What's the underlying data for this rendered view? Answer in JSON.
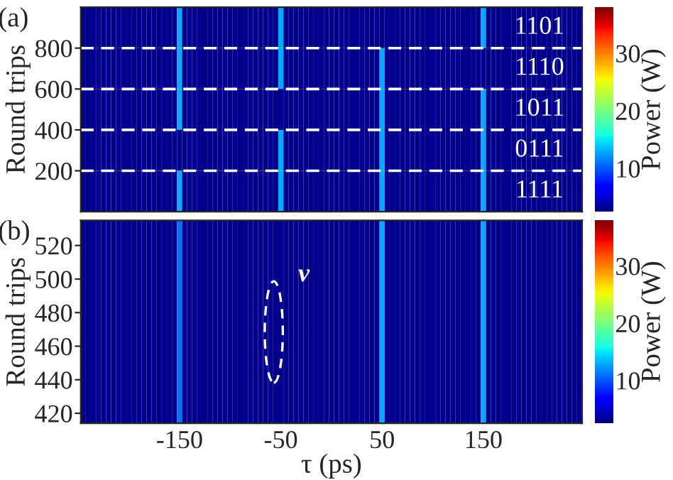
{
  "chart_data": [
    {
      "type": "heatmap",
      "ylabel": "Round trips",
      "clabel": "Power (W)",
      "annotations": [
        "(a)",
        "1101",
        "1110",
        "1011",
        "0111",
        "1111"
      ],
      "x": [
        -245,
        -240,
        -235,
        -230,
        -225,
        -220,
        -215,
        -210,
        -205,
        -200,
        -195,
        -190,
        -185,
        -180,
        -175,
        -170,
        -165,
        -160,
        -155,
        -150,
        -145,
        -140,
        -135,
        -130,
        -125,
        -120,
        -115,
        -110,
        -105,
        -100,
        -95,
        -90,
        -85,
        -80,
        -75,
        -70,
        -65,
        -60,
        -55,
        -50,
        -45,
        -40,
        -35,
        -30,
        -25,
        -20,
        -15,
        -10,
        -5,
        0,
        5,
        10,
        15,
        20,
        25,
        30,
        35,
        40,
        45,
        50,
        55,
        60,
        65,
        70,
        75,
        80,
        85,
        90,
        95,
        100,
        105,
        110,
        115,
        120,
        125,
        130,
        135,
        140,
        145,
        150,
        155,
        160,
        165,
        170,
        175,
        180,
        185,
        190,
        195,
        200,
        205,
        210,
        215,
        220,
        225,
        230,
        235,
        240,
        245
      ],
      "y": [
        900,
        700,
        500,
        300,
        100
      ],
      "cells": [
        [
          3,
          3,
          3,
          3,
          3,
          3,
          3,
          3,
          3,
          3,
          3,
          3,
          3,
          3,
          3,
          3,
          3,
          3,
          3,
          13,
          3,
          3,
          3,
          3,
          3,
          3,
          3,
          3,
          3,
          3,
          3,
          3,
          3,
          3,
          3,
          3,
          3,
          3,
          3,
          13,
          3,
          3,
          3,
          3,
          3,
          3,
          3,
          3,
          3,
          3,
          3,
          3,
          3,
          3,
          3,
          3,
          3,
          3,
          3,
          3,
          3,
          3,
          3,
          3,
          3,
          3,
          3,
          3,
          3,
          3,
          3,
          3,
          3,
          3,
          3,
          3,
          3,
          3,
          3,
          13,
          3,
          3,
          3,
          3,
          3,
          3,
          3,
          3,
          3,
          3,
          3,
          3,
          3,
          3,
          3,
          3,
          3,
          3,
          3
        ],
        [
          3,
          3,
          3,
          3,
          3,
          3,
          3,
          3,
          3,
          3,
          3,
          3,
          3,
          3,
          3,
          3,
          3,
          3,
          3,
          13,
          3,
          3,
          3,
          3,
          3,
          3,
          3,
          3,
          3,
          3,
          3,
          3,
          3,
          3,
          3,
          3,
          3,
          3,
          3,
          13,
          3,
          3,
          3,
          3,
          3,
          3,
          3,
          3,
          3,
          3,
          3,
          3,
          3,
          3,
          3,
          3,
          3,
          3,
          3,
          13,
          3,
          3,
          3,
          3,
          3,
          3,
          3,
          3,
          3,
          3,
          3,
          3,
          3,
          3,
          3,
          3,
          3,
          3,
          3,
          3,
          3,
          3,
          3,
          3,
          3,
          3,
          3,
          3,
          3,
          3,
          3,
          3,
          3,
          3,
          3,
          3,
          3,
          3,
          3
        ],
        [
          3,
          3,
          3,
          3,
          3,
          3,
          3,
          3,
          3,
          3,
          3,
          3,
          3,
          3,
          3,
          3,
          3,
          3,
          3,
          13,
          3,
          3,
          3,
          3,
          3,
          3,
          3,
          3,
          3,
          3,
          3,
          3,
          3,
          3,
          3,
          3,
          3,
          3,
          3,
          3,
          3,
          3,
          3,
          3,
          3,
          3,
          3,
          3,
          3,
          3,
          3,
          3,
          3,
          3,
          3,
          3,
          3,
          3,
          3,
          13,
          3,
          3,
          3,
          3,
          3,
          3,
          3,
          3,
          3,
          3,
          3,
          3,
          3,
          3,
          3,
          3,
          3,
          3,
          3,
          13,
          3,
          3,
          3,
          3,
          3,
          3,
          3,
          3,
          3,
          3,
          3,
          3,
          3,
          3,
          3,
          3,
          3,
          3,
          3
        ],
        [
          3,
          3,
          3,
          3,
          3,
          3,
          3,
          3,
          3,
          3,
          3,
          3,
          3,
          3,
          3,
          3,
          3,
          3,
          3,
          3,
          3,
          3,
          3,
          3,
          3,
          3,
          3,
          3,
          3,
          3,
          3,
          3,
          3,
          3,
          3,
          3,
          3,
          3,
          3,
          13,
          3,
          3,
          3,
          3,
          3,
          3,
          3,
          3,
          3,
          3,
          3,
          3,
          3,
          3,
          3,
          3,
          3,
          3,
          3,
          13,
          3,
          3,
          3,
          3,
          3,
          3,
          3,
          3,
          3,
          3,
          3,
          3,
          3,
          3,
          3,
          3,
          3,
          3,
          3,
          13,
          3,
          3,
          3,
          3,
          3,
          3,
          3,
          3,
          3,
          3,
          3,
          3,
          3,
          3,
          3,
          3,
          3,
          3,
          3
        ],
        [
          3,
          3,
          3,
          3,
          3,
          3,
          3,
          3,
          3,
          3,
          3,
          3,
          3,
          3,
          3,
          3,
          3,
          3,
          3,
          13,
          3,
          3,
          3,
          3,
          3,
          3,
          3,
          3,
          3,
          3,
          3,
          3,
          3,
          3,
          3,
          3,
          3,
          3,
          3,
          13,
          3,
          3,
          3,
          3,
          3,
          3,
          3,
          3,
          3,
          3,
          3,
          3,
          3,
          3,
          3,
          3,
          3,
          3,
          3,
          13,
          3,
          3,
          3,
          3,
          3,
          3,
          3,
          3,
          3,
          3,
          3,
          3,
          3,
          3,
          3,
          3,
          3,
          3,
          3,
          13,
          3,
          3,
          3,
          3,
          3,
          3,
          3,
          3,
          3,
          3,
          3,
          3,
          3,
          3,
          3,
          3,
          3,
          3,
          3
        ]
      ],
      "clim": [
        2.5,
        38
      ],
      "cticks": [
        10,
        20,
        30
      ],
      "xlim": [
        -247.5,
        247.5
      ],
      "ylim": [
        0,
        1000
      ],
      "yticks": [
        200,
        400,
        600,
        800
      ],
      "tick_labels": "y",
      "ref_lines": [
        {
          "axis": "y",
          "value": 200,
          "color": "#ffffff",
          "line_style": "dashed"
        },
        {
          "axis": "y",
          "value": 400,
          "color": "#ffffff",
          "line_style": "dashed"
        },
        {
          "axis": "y",
          "value": 600,
          "color": "#ffffff",
          "line_style": "dashed"
        },
        {
          "axis": "y",
          "value": 800,
          "color": "#ffffff",
          "line_style": "dashed"
        }
      ]
    },
    {
      "type": "heatmap",
      "xlabel": "τ (ps)",
      "ylabel": "Round trips",
      "clabel": "Power (W)",
      "annotations": [
        "(b)",
        "ν"
      ],
      "x": [
        -245,
        -240,
        -235,
        -230,
        -225,
        -220,
        -215,
        -210,
        -205,
        -200,
        -195,
        -190,
        -185,
        -180,
        -175,
        -170,
        -165,
        -160,
        -155,
        -150,
        -145,
        -140,
        -135,
        -130,
        -125,
        -120,
        -115,
        -110,
        -105,
        -100,
        -95,
        -90,
        -85,
        -80,
        -75,
        -70,
        -65,
        -60,
        -55,
        -50,
        -45,
        -40,
        -35,
        -30,
        -25,
        -20,
        -15,
        -10,
        -5,
        0,
        5,
        10,
        15,
        20,
        25,
        30,
        35,
        40,
        45,
        50,
        55,
        60,
        65,
        70,
        75,
        80,
        85,
        90,
        95,
        100,
        105,
        110,
        115,
        120,
        125,
        130,
        135,
        140,
        145,
        150,
        155,
        160,
        165,
        170,
        175,
        180,
        185,
        190,
        195,
        200,
        205,
        210,
        215,
        220,
        225,
        230,
        235,
        240,
        245
      ],
      "cells": [
        [
          3,
          3,
          3,
          3,
          3,
          3,
          3,
          3,
          3,
          3,
          3,
          3,
          3,
          3,
          3,
          3,
          3,
          3,
          3,
          11,
          3,
          3,
          3,
          3,
          3,
          3,
          3,
          3,
          3,
          3,
          3,
          3,
          3,
          3,
          3,
          3,
          3,
          3,
          3,
          3,
          3,
          3,
          3,
          3,
          3,
          3,
          3,
          3,
          3,
          3,
          3,
          3,
          3,
          3,
          3,
          3,
          3,
          3,
          3,
          13,
          3,
          3,
          3,
          3,
          3,
          3,
          3,
          3,
          3,
          3,
          3,
          3,
          3,
          3,
          3,
          3,
          3,
          3,
          3,
          13,
          3,
          3,
          3,
          3,
          3,
          3,
          3,
          3,
          3,
          3,
          3,
          3,
          3,
          3,
          3,
          3,
          3,
          3,
          3
        ]
      ],
      "clim": [
        2.5,
        38
      ],
      "cticks": [
        10,
        20,
        30
      ],
      "xlim": [
        -247.5,
        247.5
      ],
      "ylim": [
        414,
        535
      ],
      "xticks": [
        -150,
        -50,
        50,
        150
      ],
      "yticks": [
        420,
        440,
        460,
        480,
        500,
        520
      ]
    }
  ]
}
